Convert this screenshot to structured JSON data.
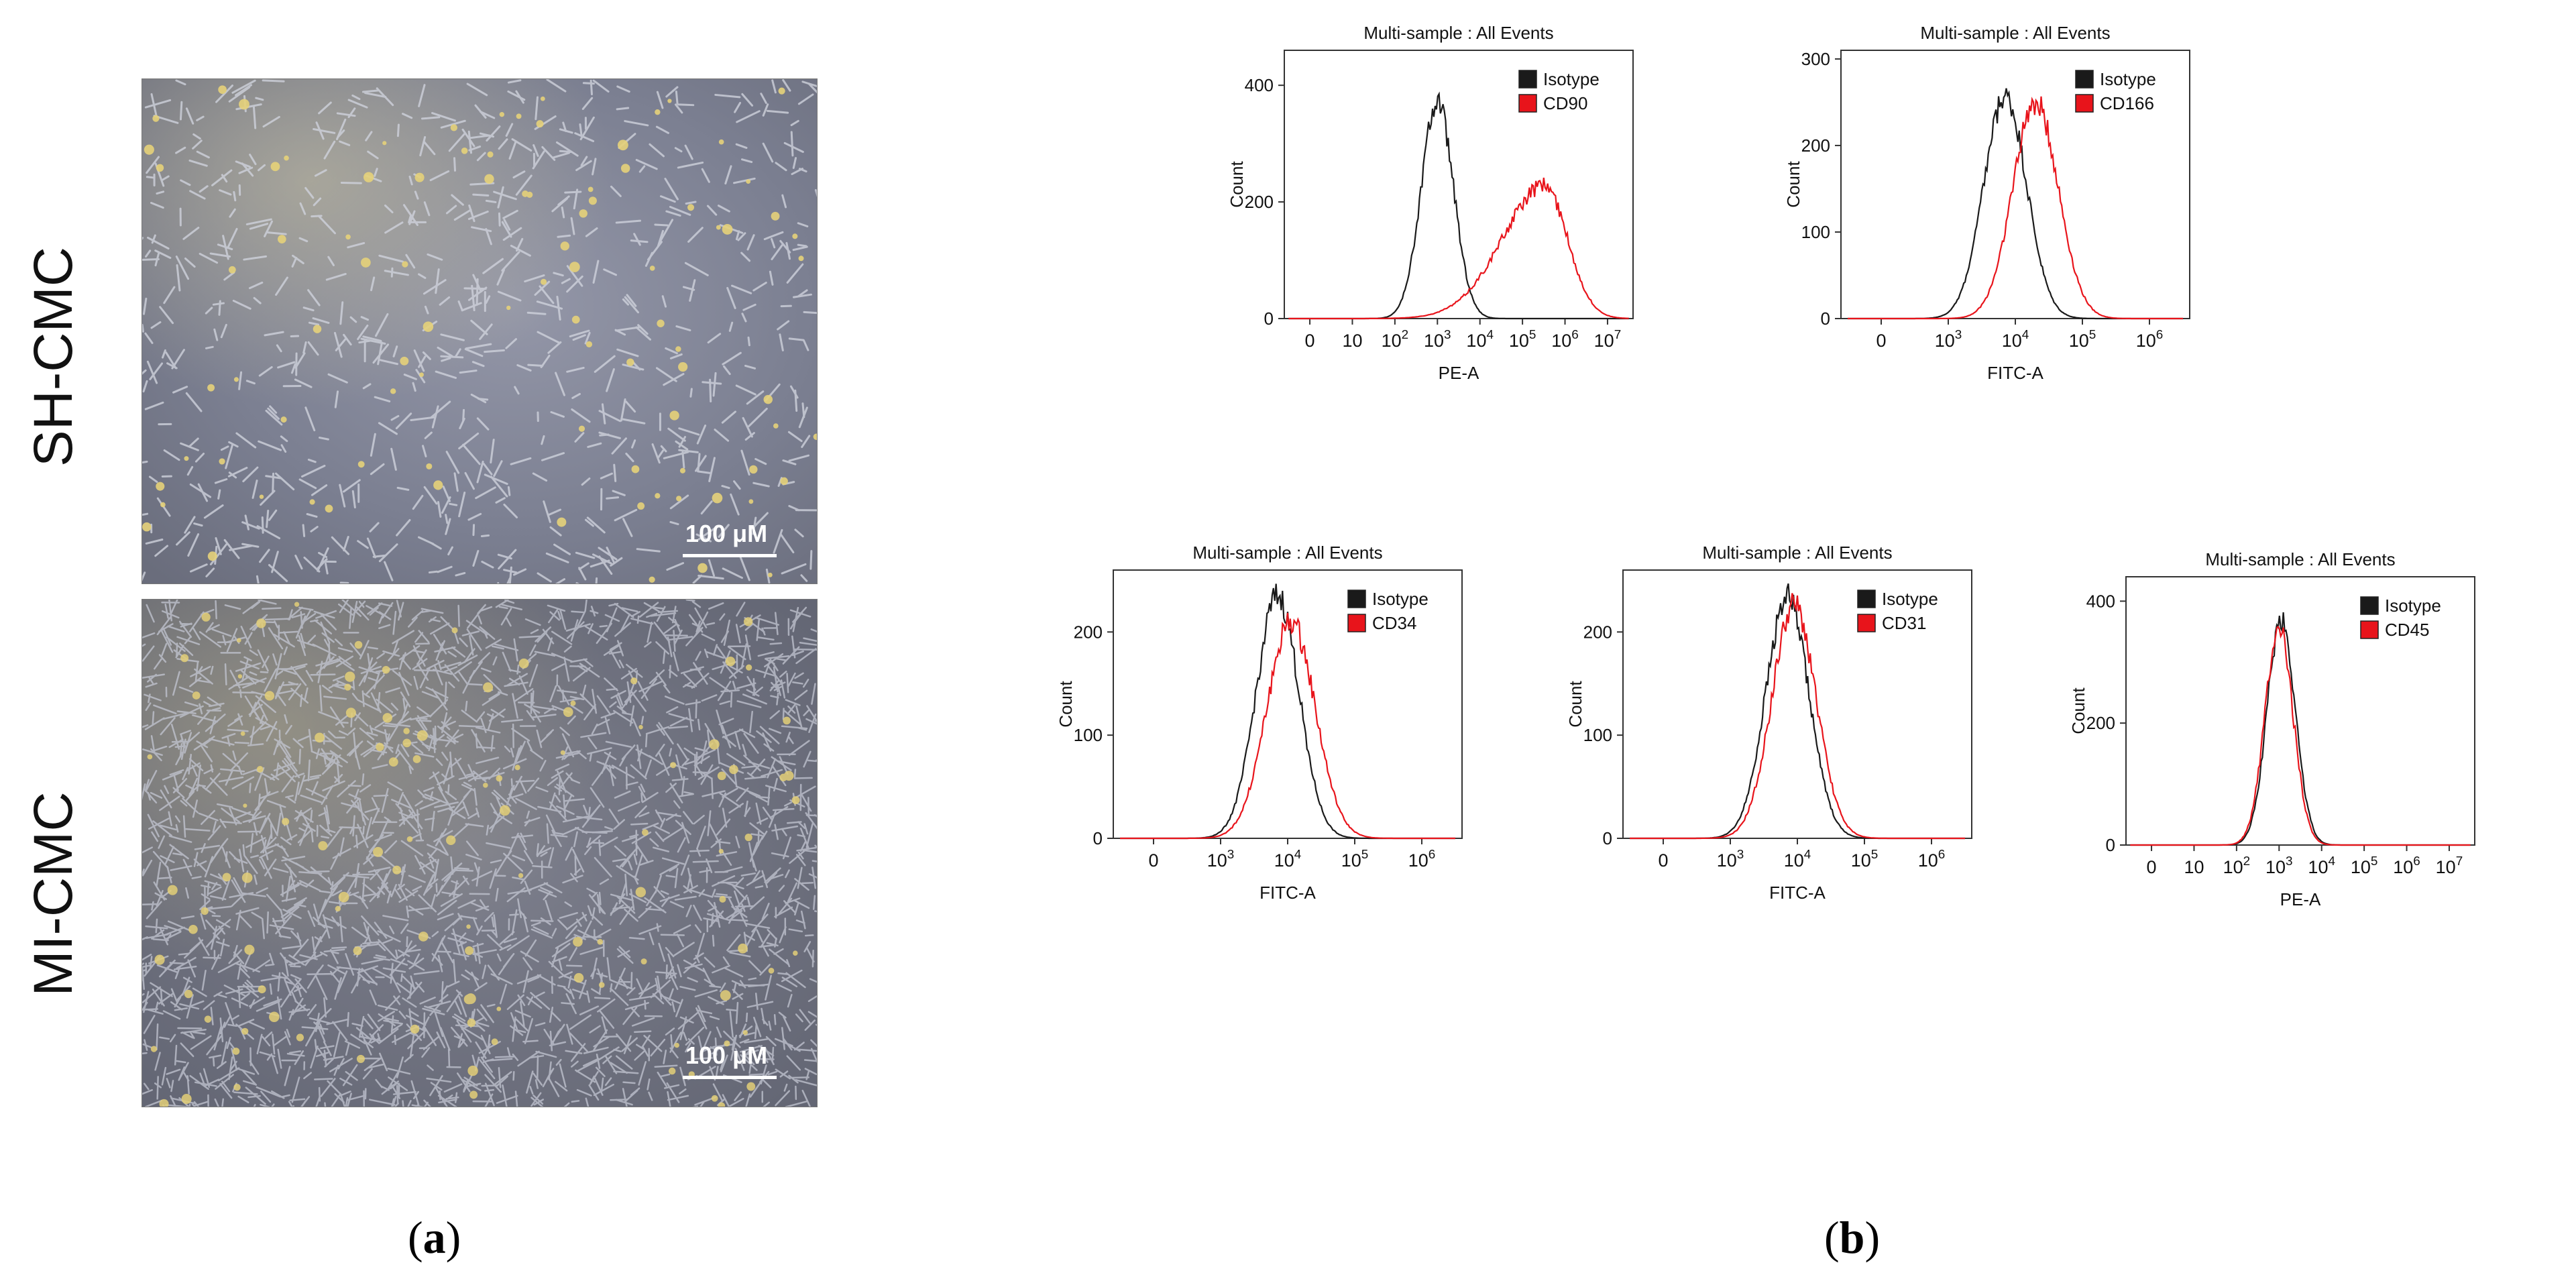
{
  "panel_a": {
    "label_open": "(",
    "label_letter": "a",
    "label_close": ")",
    "rows": [
      {
        "label": "SH-CMC",
        "scale_bar": "100 μM"
      },
      {
        "label": "MI-CMC",
        "scale_bar": "100 μM"
      }
    ]
  },
  "panel_b": {
    "label_open": "(",
    "label_letter": "b",
    "label_close": ")"
  },
  "colors": {
    "isotype": "#1a1a1a",
    "marker": "#e8141b"
  },
  "chart_data": [
    {
      "type": "line",
      "title": "Multi-sample : All Events",
      "xlabel": "PE-A",
      "ylabel": "Count",
      "x_scale": "log",
      "xticks": [
        "0",
        "10",
        "10^2",
        "10^3",
        "10^4",
        "10^5",
        "10^6",
        "10^7"
      ],
      "yticks": [
        "0",
        "200",
        "400"
      ],
      "ylim": [
        0,
        460
      ],
      "legend": "top-right",
      "series": [
        {
          "name": "Isotype",
          "peak_log10": 3.0,
          "peak_count": 370,
          "width": 0.38
        },
        {
          "name": "CD90",
          "peak_log10": 5.5,
          "peak_count": 230,
          "width": 0.55
        }
      ]
    },
    {
      "type": "line",
      "title": "Multi-sample : All Events",
      "xlabel": "FITC-A",
      "ylabel": "Count",
      "x_scale": "log",
      "xticks": [
        "0",
        "10^3",
        "10^4",
        "10^5",
        "10^6"
      ],
      "yticks": [
        "0",
        "100",
        "200",
        "300"
      ],
      "ylim": [
        0,
        310
      ],
      "legend": "top-right",
      "series": [
        {
          "name": "Isotype",
          "peak_log10": 3.85,
          "peak_count": 255,
          "width": 0.32
        },
        {
          "name": "CD166",
          "peak_log10": 4.3,
          "peak_count": 250,
          "width": 0.34
        }
      ]
    },
    {
      "type": "line",
      "title": "Multi-sample : All Events",
      "xlabel": "FITC-A",
      "ylabel": "Count",
      "x_scale": "log",
      "xticks": [
        "0",
        "10^3",
        "10^4",
        "10^5",
        "10^6"
      ],
      "yticks": [
        "0",
        "100",
        "200"
      ],
      "ylim": [
        0,
        260
      ],
      "legend": "top-right",
      "series": [
        {
          "name": "Isotype",
          "peak_log10": 3.85,
          "peak_count": 235,
          "width": 0.32
        },
        {
          "name": "CD34",
          "peak_log10": 4.05,
          "peak_count": 210,
          "width": 0.36
        }
      ]
    },
    {
      "type": "line",
      "title": "Multi-sample : All Events",
      "xlabel": "FITC-A",
      "ylabel": "Count",
      "x_scale": "log",
      "xticks": [
        "0",
        "10^3",
        "10^4",
        "10^5",
        "10^6"
      ],
      "yticks": [
        "0",
        "100",
        "200"
      ],
      "ylim": [
        0,
        260
      ],
      "legend": "top-right",
      "series": [
        {
          "name": "Isotype",
          "peak_log10": 3.85,
          "peak_count": 235,
          "width": 0.32
        },
        {
          "name": "CD31",
          "peak_log10": 3.95,
          "peak_count": 225,
          "width": 0.33
        }
      ]
    },
    {
      "type": "line",
      "title": "Multi-sample : All Events",
      "xlabel": "PE-A",
      "ylabel": "Count",
      "x_scale": "log",
      "xticks": [
        "0",
        "10",
        "10^2",
        "10^3",
        "10^4",
        "10^5",
        "10^6",
        "10^7"
      ],
      "yticks": [
        "0",
        "200",
        "400"
      ],
      "ylim": [
        0,
        440
      ],
      "legend": "top-right",
      "series": [
        {
          "name": "Isotype",
          "peak_log10": 3.05,
          "peak_count": 370,
          "width": 0.33
        },
        {
          "name": "CD45",
          "peak_log10": 3.0,
          "peak_count": 355,
          "width": 0.33
        }
      ]
    }
  ]
}
